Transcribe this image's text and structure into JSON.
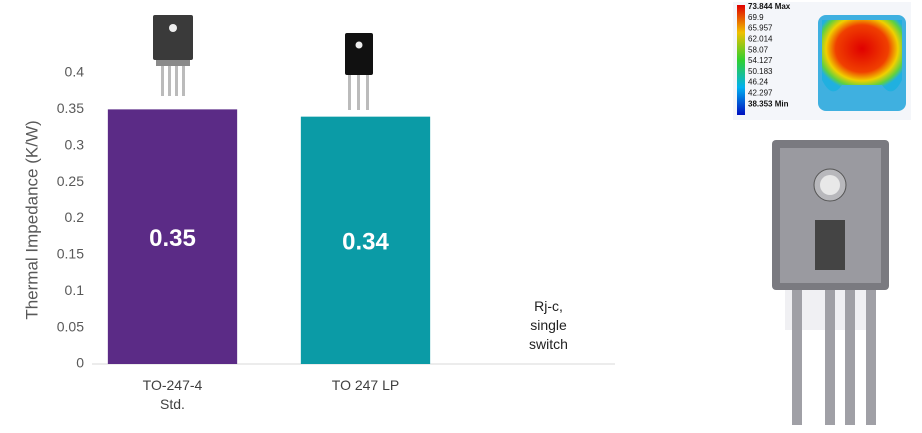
{
  "chart_data": {
    "type": "bar",
    "y_label": "Thermal Impedance (K/W)",
    "categories": [
      "TO-247-4\nStd.",
      "TO 247 LP",
      null
    ],
    "values": [
      0.35,
      0.34,
      null
    ],
    "colors": [
      "#5b2b86",
      "#0b9ba6"
    ],
    "ylim": [
      0,
      0.45
    ],
    "yticks": [
      0,
      0.05,
      0.1,
      0.15,
      0.2,
      0.25,
      0.3,
      0.35,
      0.4
    ],
    "annotation": "Rj-c,\nsingle\nswitch"
  },
  "thermal_legend": [
    "73.844 Max",
    "69.9",
    "65.957",
    "62.014",
    "58.07",
    "54.127",
    "50.183",
    "46.24",
    "42.297",
    "38.353 Min"
  ]
}
